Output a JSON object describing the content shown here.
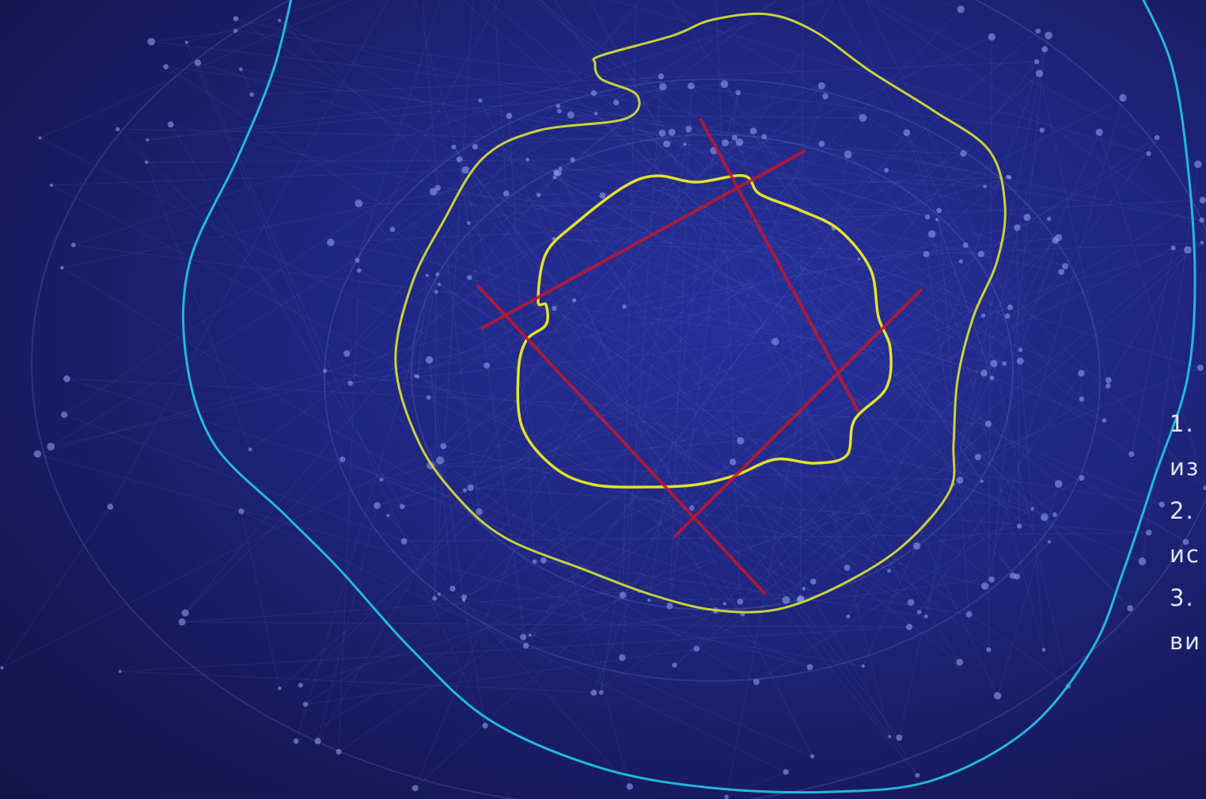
{
  "slide": {
    "list_fragments": [
      "1.",
      "из",
      "2.",
      "ис",
      "3.",
      "ви"
    ]
  }
}
